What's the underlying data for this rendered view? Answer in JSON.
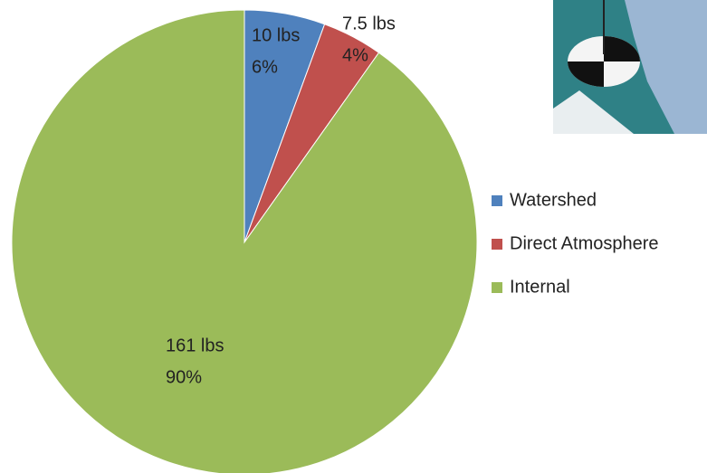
{
  "chart_data": {
    "type": "pie",
    "categories": [
      "Watershed",
      "Direct Atmosphere",
      "Internal"
    ],
    "values": [
      10,
      7.5,
      161
    ],
    "value_labels": [
      "10 lbs",
      "7.5 lbs",
      "161 lbs"
    ],
    "percent_values": [
      6,
      4,
      90
    ],
    "percent_labels": [
      "6%",
      "4%",
      "90%"
    ],
    "colors": [
      "#4f81bd",
      "#c0504d",
      "#9bbb59"
    ],
    "legend": "right"
  }
}
